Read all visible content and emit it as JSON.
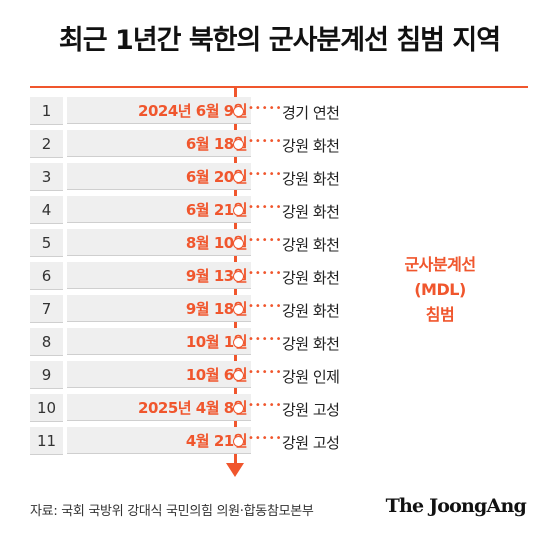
{
  "title": "최근 1년간 북한의 군사분계선 침범 지역",
  "mdl_label": [
    "군사분계선",
    "(MDL)",
    "침범"
  ],
  "rows": [
    {
      "num": "1",
      "date": "2024년 6월 9일",
      "place": "경기 연천"
    },
    {
      "num": "2",
      "date": "6월 18일",
      "place": "강원 화천"
    },
    {
      "num": "3",
      "date": "6월 20일",
      "place": "강원 화천"
    },
    {
      "num": "4",
      "date": "6월 21일",
      "place": "강원 화천"
    },
    {
      "num": "5",
      "date": "8월 10일",
      "place": "강원 화천"
    },
    {
      "num": "6",
      "date": "9월 13일",
      "place": "강원 화천"
    },
    {
      "num": "7",
      "date": "9월 18일",
      "place": "강원 화천"
    },
    {
      "num": "8",
      "date": "10월 1일",
      "place": "강원 화천"
    },
    {
      "num": "9",
      "date": "10월 6일",
      "place": "강원 인제"
    },
    {
      "num": "10",
      "date": "2025년 4월 8일",
      "place": "강원 고성"
    },
    {
      "num": "11",
      "date": "4월 21일",
      "place": "강원 고성"
    }
  ],
  "source": "자료: 국회 국방위 강대식 국민의힘 의원·합동참모본부",
  "logo": "The JoongAng",
  "colors": {
    "accent": "#f0562d",
    "cell_bg": "#efefef"
  }
}
